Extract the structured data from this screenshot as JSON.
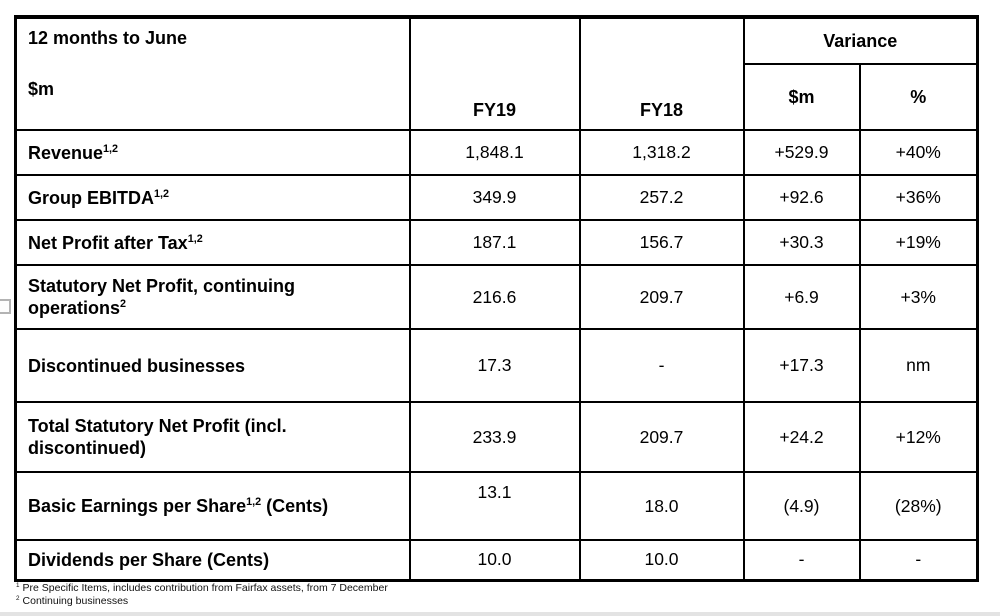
{
  "table": {
    "header": {
      "period_label": "12 months to June",
      "unit_label": "$m",
      "col_fy19": "FY19",
      "col_fy18": "FY18",
      "variance_label": "Variance",
      "variance_sub_m": "$m",
      "variance_sub_pct": "%"
    },
    "rows": [
      {
        "label": "Revenue",
        "sup": "1,2",
        "label_suffix": "",
        "fy19": "1,848.1",
        "fy18": "1,318.2",
        "var_m": "+529.9",
        "var_pct": "+40%"
      },
      {
        "label": "Group EBITDA",
        "sup": "1,2",
        "label_suffix": "",
        "fy19": "349.9",
        "fy18": "257.2",
        "var_m": "+92.6",
        "var_pct": "+36%"
      },
      {
        "label": "Net Profit after Tax",
        "sup": "1,2",
        "label_suffix": "",
        "fy19": "187.1",
        "fy18": "156.7",
        "var_m": "+30.3",
        "var_pct": "+19%"
      },
      {
        "label": "Statutory Net Profit, continuing operations",
        "sup": "2",
        "label_suffix": "",
        "fy19": "216.6",
        "fy18": "209.7",
        "var_m": "+6.9",
        "var_pct": "+3%"
      },
      {
        "label": "Discontinued businesses",
        "sup": "",
        "label_suffix": "",
        "fy19": "17.3",
        "fy18": "-",
        "var_m": "+17.3",
        "var_pct": "nm"
      },
      {
        "label": "Total Statutory Net Profit (incl. discontinued)",
        "sup": "",
        "label_suffix": "",
        "fy19": "233.9",
        "fy18": "209.7",
        "var_m": "+24.2",
        "var_pct": "+12%"
      },
      {
        "label": "Basic Earnings per Share",
        "sup": "1,2",
        "label_suffix": " (Cents)",
        "fy19": "13.1",
        "fy18": "18.0",
        "var_m": "(4.9)",
        "var_pct": "(28%)"
      },
      {
        "label": "Dividends per Share (Cents)",
        "sup": "",
        "label_suffix": "",
        "fy19": "10.0",
        "fy18": "10.0",
        "var_m": "-",
        "var_pct": "-"
      }
    ],
    "footnotes": [
      {
        "marker": "1",
        "text": "Pre Specific Items, includes contribution from Fairfax assets, from 7 December"
      },
      {
        "marker": "2",
        "text": "Continuing businesses"
      }
    ]
  }
}
